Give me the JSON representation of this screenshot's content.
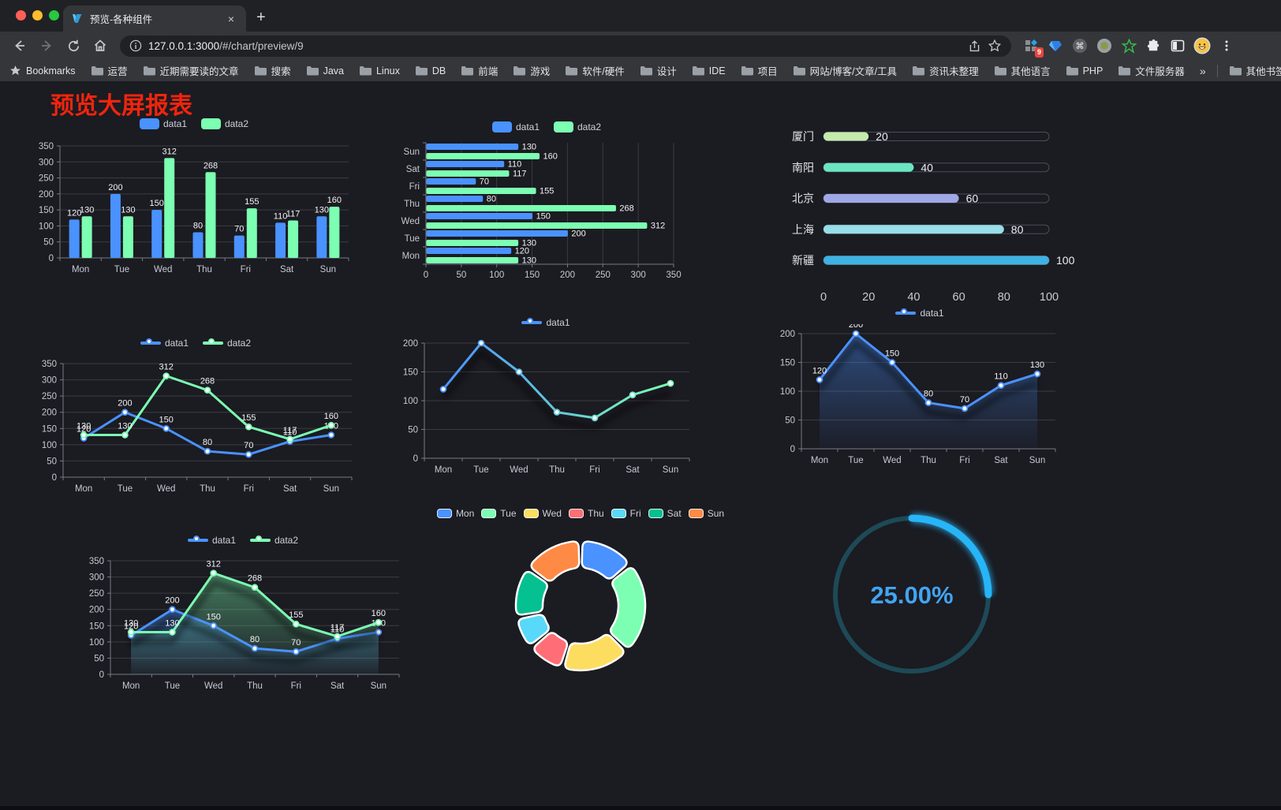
{
  "browser": {
    "tab": {
      "title": "预览-各种组件",
      "close_glyph": "×",
      "new_tab_glyph": "+"
    },
    "address": {
      "url_host": "127.0.0.1:3000",
      "url_path": "/#/chart/preview/9"
    },
    "extensions_badge": "9",
    "bookmarks_bar": {
      "star_label": "Bookmarks",
      "folders": [
        "运营",
        "近期需要读的文章",
        "搜索",
        "Java",
        "Linux",
        "DB",
        "前端",
        "游戏",
        "软件/硬件",
        "设计",
        "IDE",
        "项目",
        "网站/博客/文章/工具",
        "资讯未整理",
        "其他语言",
        "PHP",
        "文件服务器"
      ],
      "overflow_glyph": "»",
      "other_bookmarks": "其他书签"
    }
  },
  "page": {
    "title": "预览大屏报表",
    "title_color": "#f0250c"
  },
  "chart_data": [
    {
      "id": "bar-grouped",
      "type": "bar",
      "categories": [
        "Mon",
        "Tue",
        "Wed",
        "Thu",
        "Fri",
        "Sat",
        "Sun"
      ],
      "series": [
        {
          "name": "data1",
          "color": "#4992ff",
          "values": [
            120,
            200,
            150,
            80,
            70,
            110,
            130
          ]
        },
        {
          "name": "data2",
          "color": "#7cffb2",
          "values": [
            130,
            130,
            312,
            268,
            155,
            117,
            160
          ]
        }
      ],
      "ylim": [
        0,
        350
      ],
      "ytick_step": 50,
      "value_labels": true,
      "legend_position": "top",
      "grid": true
    },
    {
      "id": "bar-horizontal",
      "type": "bar-horizontal",
      "categories": [
        "Mon",
        "Tue",
        "Wed",
        "Thu",
        "Fri",
        "Sat",
        "Sun"
      ],
      "categories_note": "Mon displayed at bottom, Sun at top",
      "series": [
        {
          "name": "data1",
          "color": "#4992ff",
          "values": [
            120,
            200,
            150,
            80,
            70,
            110,
            130
          ]
        },
        {
          "name": "data2",
          "color": "#7cffb2",
          "values": [
            130,
            130,
            312,
            268,
            155,
            117,
            160
          ]
        }
      ],
      "xlim": [
        0,
        350
      ],
      "xtick_step": 50,
      "value_labels": true,
      "legend_position": "top",
      "grid": true
    },
    {
      "id": "capsule-progress",
      "type": "capsule-bar",
      "rows": [
        {
          "label": "厦门",
          "value": 20,
          "color": "#c4ebad"
        },
        {
          "label": "南阳",
          "value": 40,
          "color": "#6be6c1"
        },
        {
          "label": "北京",
          "value": 60,
          "color": "#a0a7e6"
        },
        {
          "label": "上海",
          "value": 80,
          "color": "#96dee8"
        },
        {
          "label": "新疆",
          "value": 100,
          "color": "#3fb1e3"
        }
      ],
      "xlim": [
        0,
        100
      ],
      "xticks": [
        0,
        20,
        40,
        60,
        80,
        100
      ]
    },
    {
      "id": "line-two-series",
      "type": "line",
      "categories": [
        "Mon",
        "Tue",
        "Wed",
        "Thu",
        "Fri",
        "Sat",
        "Sun"
      ],
      "series": [
        {
          "name": "data1",
          "color": "#4992ff",
          "values": [
            120,
            200,
            150,
            80,
            70,
            110,
            130
          ]
        },
        {
          "name": "data2",
          "color": "#7cffb2",
          "values": [
            130,
            130,
            312,
            268,
            155,
            117,
            160
          ]
        }
      ],
      "ylim": [
        0,
        350
      ],
      "ytick_step": 50,
      "value_labels": true,
      "legend_position": "top",
      "grid": true
    },
    {
      "id": "line-gradient",
      "type": "line",
      "categories": [
        "Mon",
        "Tue",
        "Wed",
        "Thu",
        "Fri",
        "Sat",
        "Sun"
      ],
      "series": [
        {
          "name": "data1",
          "gradient": [
            "#4992ff",
            "#7cffb2"
          ],
          "values": [
            120,
            200,
            150,
            80,
            70,
            110,
            130
          ]
        }
      ],
      "ylim": [
        0,
        200
      ],
      "ytick_step": 50,
      "value_labels": false,
      "legend_position": "top",
      "grid": true,
      "shadow": true
    },
    {
      "id": "area-single",
      "type": "area",
      "categories": [
        "Mon",
        "Tue",
        "Wed",
        "Thu",
        "Fri",
        "Sat",
        "Sun"
      ],
      "series": [
        {
          "name": "data1",
          "color": "#4992ff",
          "values": [
            120,
            200,
            150,
            80,
            70,
            110,
            130
          ]
        }
      ],
      "ylim": [
        0,
        200
      ],
      "ytick_step": 50,
      "value_labels": true,
      "legend_position": "top",
      "grid": true,
      "shadow": true
    },
    {
      "id": "area-two-series",
      "type": "area",
      "categories": [
        "Mon",
        "Tue",
        "Wed",
        "Thu",
        "Fri",
        "Sat",
        "Sun"
      ],
      "series": [
        {
          "name": "data1",
          "color": "#4992ff",
          "values": [
            120,
            200,
            150,
            80,
            70,
            110,
            130
          ]
        },
        {
          "name": "data2",
          "color": "#7cffb2",
          "values": [
            130,
            130,
            312,
            268,
            155,
            117,
            160
          ]
        }
      ],
      "ylim": [
        0,
        350
      ],
      "ytick_step": 50,
      "value_labels": true,
      "legend_position": "top",
      "grid": true,
      "shadow": true
    },
    {
      "id": "donut",
      "type": "pie",
      "slices": [
        {
          "name": "Mon",
          "value": 120,
          "color": "#4992ff"
        },
        {
          "name": "Tue",
          "value": 200,
          "color": "#7cffb2"
        },
        {
          "name": "Wed",
          "value": 150,
          "color": "#fddd60"
        },
        {
          "name": "Thu",
          "value": 80,
          "color": "#ff6e76"
        },
        {
          "name": "Fri",
          "value": 70,
          "color": "#58d9f9"
        },
        {
          "name": "Sat",
          "value": 110,
          "color": "#05c091"
        },
        {
          "name": "Sun",
          "value": 130,
          "color": "#ff8a45"
        }
      ],
      "legend_position": "top",
      "ring": true,
      "rounded_segments": true,
      "segment_border_color": "#ffffff"
    },
    {
      "id": "gauge",
      "type": "gauge",
      "value": 25,
      "display": "25.00%",
      "arc_color": "#27b5f7",
      "track_color": "#1d4a56",
      "text_color": "#42a4f0"
    }
  ]
}
